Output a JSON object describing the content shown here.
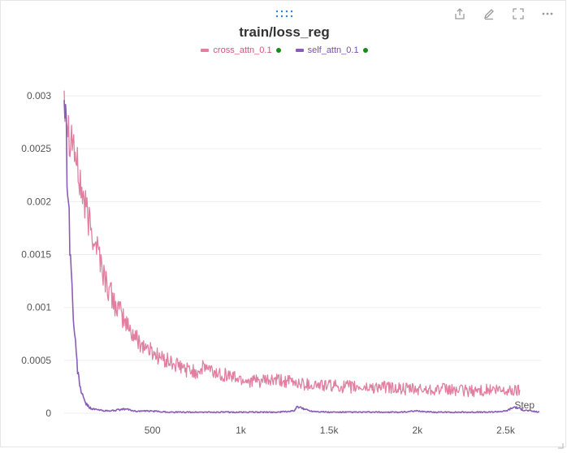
{
  "toolbar": {
    "icons": [
      "drag-handle-icon",
      "export-icon",
      "edit-icon",
      "fullscreen-icon",
      "more-icon"
    ]
  },
  "colors": {
    "cross_attn": "#e27fa1",
    "self_attn": "#8a5cb8",
    "grid": "#ededed",
    "legend_dot": "#1a8a1a",
    "accent": "#2f7fd6"
  },
  "chart_data": {
    "type": "line",
    "title": "train/loss_reg",
    "xlabel": "Step",
    "ylabel": "",
    "xlim": [
      0,
      2700
    ],
    "ylim": [
      0,
      0.0033
    ],
    "grid": true,
    "legend_position": "top-center",
    "x_ticks": [
      500,
      1000,
      1500,
      2000,
      2500
    ],
    "x_tick_labels": [
      "500",
      "1k",
      "1.5k",
      "2k",
      "2.5k"
    ],
    "y_ticks": [
      0,
      0.0005,
      0.001,
      0.0015,
      0.002,
      0.0025,
      0.003
    ],
    "y_tick_labels": [
      "0",
      "0.0005",
      "0.001",
      "0.0015",
      "0.002",
      "0.0025",
      "0.003"
    ],
    "series": [
      {
        "name": "cross_attn_0.1",
        "color": "#e27fa1",
        "x": [
          0,
          25,
          50,
          75,
          100,
          125,
          150,
          175,
          200,
          225,
          250,
          275,
          300,
          350,
          400,
          450,
          500,
          550,
          600,
          650,
          700,
          750,
          800,
          850,
          900,
          950,
          1000,
          1100,
          1200,
          1300,
          1400,
          1500,
          1600,
          1700,
          1800,
          1900,
          2000,
          2100,
          2200,
          2300,
          2400,
          2500,
          2580
        ],
        "y": [
          0.0031,
          0.0027,
          0.0026,
          0.0023,
          0.0021,
          0.0019,
          0.00175,
          0.00165,
          0.0015,
          0.0013,
          0.00118,
          0.00108,
          0.001,
          0.00085,
          0.00072,
          0.00064,
          0.00058,
          0.00052,
          0.00048,
          0.00044,
          0.00041,
          0.00039,
          0.00044,
          0.00038,
          0.00037,
          0.00035,
          0.00032,
          0.0003,
          0.00031,
          0.00029,
          0.00027,
          0.00026,
          0.00025,
          0.00024,
          0.00025,
          0.00023,
          0.00022,
          0.00023,
          0.00022,
          0.00021,
          0.00022,
          0.00021,
          0.00022
        ]
      },
      {
        "name": "self_attn_0.1",
        "color": "#8a5cb8",
        "x": [
          0,
          20,
          40,
          60,
          80,
          100,
          120,
          140,
          160,
          200,
          250,
          300,
          350,
          400,
          500,
          600,
          700,
          800,
          900,
          1000,
          1100,
          1200,
          1300,
          1320,
          1400,
          1500,
          1600,
          1700,
          1800,
          1900,
          2000,
          2100,
          2200,
          2300,
          2400,
          2500,
          2550,
          2600,
          2650,
          2690
        ],
        "y": [
          0.0032,
          0.0022,
          0.0013,
          0.0007,
          0.00035,
          0.00018,
          0.0001,
          6e-05,
          4e-05,
          3e-05,
          2e-05,
          3e-05,
          4e-05,
          2e-05,
          2e-05,
          1e-05,
          1e-05,
          1e-05,
          1e-05,
          1e-05,
          1e-05,
          1e-05,
          2e-05,
          6e-05,
          2e-05,
          1e-05,
          1e-05,
          1e-05,
          1e-05,
          1e-05,
          2e-05,
          1e-05,
          1e-05,
          1e-05,
          1e-05,
          2e-05,
          6e-05,
          3e-05,
          2e-05,
          1e-05
        ]
      }
    ]
  }
}
